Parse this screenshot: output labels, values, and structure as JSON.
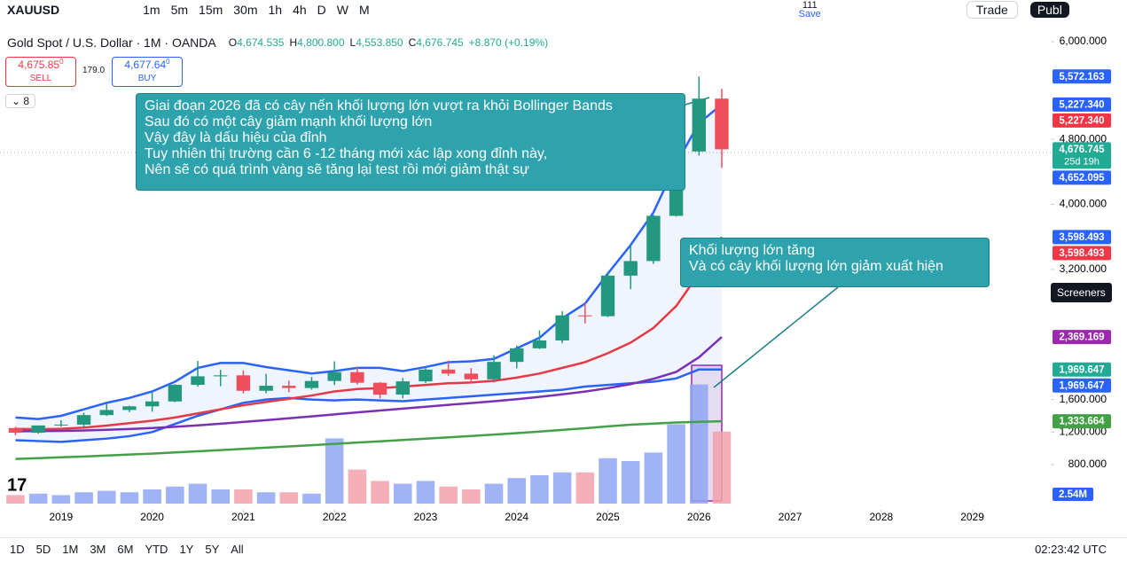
{
  "toolbar": {
    "symbol": "XAUUSD",
    "intervals": [
      "1m",
      "5m",
      "15m",
      "30m",
      "1h",
      "4h",
      "D",
      "W",
      "M"
    ],
    "save_count": "111",
    "save": "Save",
    "trade": "Trade",
    "publish": "Publ"
  },
  "header": {
    "title": "Gold Spot / U.S. Dollar · 1M · OANDA",
    "ohlc": [
      {
        "key": "O",
        "value": "4,674.535"
      },
      {
        "key": "H",
        "value": "4,800.800"
      },
      {
        "key": "L",
        "value": "4,553.850"
      },
      {
        "key": "C",
        "value": "4,676.745"
      }
    ],
    "change": "+8.870 (+0.19%)",
    "sell_price": "4,675.85",
    "sell_sup": "0",
    "sell": "SELL",
    "spread": "179.0",
    "buy_price": "4,677.64",
    "buy_sup": "0",
    "buy": "BUY",
    "indicators": "8"
  },
  "annotations": [
    {
      "lines": [
        "Giai đoạn 2026 đã có cây nến khối lượng lớn vượt ra khỏi Bollinger Bands",
        "Sau đó có một cây giảm mạnh khối lượng lớn",
        "Vậy đây là dấu hiệu của đỉnh",
        "Tuy nhiên thị trường cần 6 -12 tháng mới xác lập xong đỉnh này,",
        "Nên sẽ có quá trình vàng sẽ tăng lại test rồi mới giảm thật sự"
      ]
    },
    {
      "lines": [
        "Khối lượng lớn tăng",
        "Và có cây khối lượng lớn giảm xuất hiện"
      ]
    }
  ],
  "chart": {
    "type": "candlestick",
    "xlim": [
      2018.33,
      2029.86
    ],
    "ylim": [
      299,
      6131
    ],
    "xticks": [
      2019,
      2020,
      2021,
      2022,
      2023,
      2024,
      2025,
      2026,
      2027,
      2028,
      2029
    ],
    "yticks": [
      {
        "value": 800,
        "label": "800.000"
      },
      {
        "value": 1200,
        "label": "1,200.000"
      },
      {
        "value": 1600,
        "label": "1,600.000"
      },
      {
        "value": 3200,
        "label": "3,200.000"
      },
      {
        "value": 4000,
        "label": "4,000.000"
      },
      {
        "value": 4800,
        "label": "4,800.000"
      },
      {
        "value": 6000,
        "label": "6,000.000"
      }
    ],
    "t": [
      2018.5,
      2018.75,
      2019,
      2019.25,
      2019.5,
      2019.75,
      2020,
      2020.25,
      2020.5,
      2020.75,
      2021,
      2021.25,
      2021.5,
      2021.75,
      2022,
      2022.25,
      2022.5,
      2022.75,
      2023,
      2023.25,
      2023.5,
      2023.75,
      2024,
      2024.25,
      2024.5,
      2024.75,
      2025,
      2025.25,
      2025.5,
      2025.75,
      2026,
      2026.25
    ],
    "candles": [
      [
        1250,
        1265,
        1160,
        1192
      ],
      [
        1192,
        1245,
        1180,
        1282
      ],
      [
        1282,
        1346,
        1266,
        1292
      ],
      [
        1292,
        1439,
        1266,
        1409
      ],
      [
        1409,
        1557,
        1400,
        1472
      ],
      [
        1472,
        1525,
        1445,
        1517
      ],
      [
        1517,
        1703,
        1451,
        1577
      ],
      [
        1577,
        1789,
        1568,
        1781
      ],
      [
        1781,
        2075,
        1758,
        1886
      ],
      [
        1886,
        1966,
        1764,
        1898
      ],
      [
        1898,
        1959,
        1676,
        1708
      ],
      [
        1708,
        1916,
        1677,
        1770
      ],
      [
        1770,
        1834,
        1690,
        1742
      ],
      [
        1742,
        1877,
        1721,
        1829
      ],
      [
        1829,
        2070,
        1780,
        1937
      ],
      [
        1937,
        1998,
        1785,
        1807
      ],
      [
        1807,
        1814,
        1615,
        1661
      ],
      [
        1661,
        1864,
        1617,
        1824
      ],
      [
        1824,
        2009,
        1804,
        1969
      ],
      [
        1969,
        2079,
        1893,
        1919
      ],
      [
        1919,
        1987,
        1810,
        1849
      ],
      [
        1849,
        2146,
        1810,
        2063
      ],
      [
        2063,
        2265,
        1984,
        2230
      ],
      [
        2230,
        2450,
        2220,
        2327
      ],
      [
        2327,
        2685,
        2293,
        2635
      ],
      [
        2635,
        2790,
        2536,
        2625
      ],
      [
        2625,
        3167,
        2614,
        3124
      ],
      [
        3124,
        3500,
        2957,
        3303
      ],
      [
        3303,
        3870,
        3268,
        3859
      ],
      [
        3859,
        4800,
        3850,
        4650
      ],
      [
        4650,
        5572,
        4600,
        5300
      ],
      [
        5300,
        5420,
        4450,
        4676.745
      ]
    ],
    "volume_lim": [
      0,
      5
    ],
    "volumes": [
      0.3,
      0.35,
      0.3,
      0.4,
      0.45,
      0.4,
      0.5,
      0.6,
      0.7,
      0.5,
      0.5,
      0.4,
      0.4,
      0.35,
      2.3,
      1.2,
      0.8,
      0.7,
      0.8,
      0.6,
      0.5,
      0.7,
      0.9,
      1.0,
      1.1,
      1.1,
      1.6,
      1.5,
      1.8,
      2.8,
      4.2,
      2.54
    ],
    "volume_label": "2.54M",
    "lines": [
      {
        "color": "#2962ff",
        "values": [
          1380,
          1360,
          1400,
          1480,
          1560,
          1620,
          1700,
          1820,
          1990,
          2050,
          2050,
          2000,
          1960,
          1920,
          1950,
          1990,
          1990,
          1950,
          2000,
          2060,
          2070,
          2100,
          2230,
          2360,
          2600,
          2780,
          3150,
          3500,
          3900,
          4500,
          5000,
          5227.34
        ]
      },
      {
        "color": "#2962ff",
        "values": [
          1100,
          1090,
          1080,
          1100,
          1120,
          1150,
          1200,
          1300,
          1400,
          1480,
          1560,
          1600,
          1620,
          1600,
          1590,
          1600,
          1590,
          1580,
          1600,
          1620,
          1640,
          1660,
          1680,
          1700,
          1720,
          1760,
          1780,
          1800,
          1820,
          1860,
          1969.647,
          1969.647
        ]
      },
      {
        "color": "#e53945",
        "values": [
          1240,
          1235,
          1240,
          1255,
          1280,
          1310,
          1340,
          1380,
          1430,
          1480,
          1530,
          1570,
          1610,
          1650,
          1700,
          1730,
          1740,
          1760,
          1780,
          1800,
          1810,
          1830,
          1870,
          1920,
          1990,
          2060,
          2170,
          2300,
          2480,
          2750,
          3150,
          3598.493
        ]
      },
      {
        "color": "#7b2fb5",
        "values": [
          1210,
          1212,
          1215,
          1220,
          1228,
          1238,
          1250,
          1265,
          1283,
          1303,
          1325,
          1347,
          1370,
          1393,
          1418,
          1442,
          1465,
          1488,
          1512,
          1535,
          1557,
          1580,
          1605,
          1633,
          1664,
          1698,
          1740,
          1790,
          1855,
          1940,
          2120,
          2369.169
        ]
      },
      {
        "color": "#43a047",
        "values": [
          870,
          880,
          890,
          900,
          912,
          924,
          936,
          950,
          964,
          979,
          994,
          1009,
          1024,
          1039,
          1055,
          1071,
          1087,
          1103,
          1119,
          1135,
          1152,
          1170,
          1188,
          1207,
          1227,
          1248,
          1270,
          1291,
          1305,
          1318,
          1326,
          1333.664
        ]
      }
    ],
    "price_labels": [
      {
        "value": 5572.163,
        "label": "5,572.163",
        "color": "#2962ff"
      },
      {
        "value": 5227.34,
        "label": "5,227.340",
        "color": "#2962ff"
      },
      {
        "value": 5227.34,
        "label": "5,227.340",
        "color": "#f23645"
      },
      {
        "value": 4676.745,
        "label": "4,676.745",
        "sub": "25d 19h",
        "color": "#22ab94"
      },
      {
        "value": 4652.095,
        "label": "4,652.095",
        "color": "#2962ff"
      },
      {
        "value": 3598.493,
        "label": "3,598.493",
        "color": "#2962ff"
      },
      {
        "value": 3598.493,
        "label": "3,598.493",
        "color": "#f23645"
      },
      {
        "value": 2369.169,
        "label": "2,369.169",
        "color": "#9c27b0"
      },
      {
        "value": 1969.647,
        "label": "1,969.647",
        "color": "#22ab94"
      },
      {
        "value": 1969.647,
        "label": "1,969.647",
        "color": "#2962ff"
      },
      {
        "value": 1333.664,
        "label": "1,333.664",
        "color": "#43a047"
      }
    ],
    "up_color": "#22997f",
    "down_color": "#ef4f5c"
  },
  "screeners": "Screeners",
  "footer": {
    "ranges": [
      "1D",
      "5D",
      "1M",
      "3M",
      "6M",
      "YTD",
      "1Y",
      "5Y",
      "All"
    ],
    "clock": "02:23:42 UTC"
  }
}
